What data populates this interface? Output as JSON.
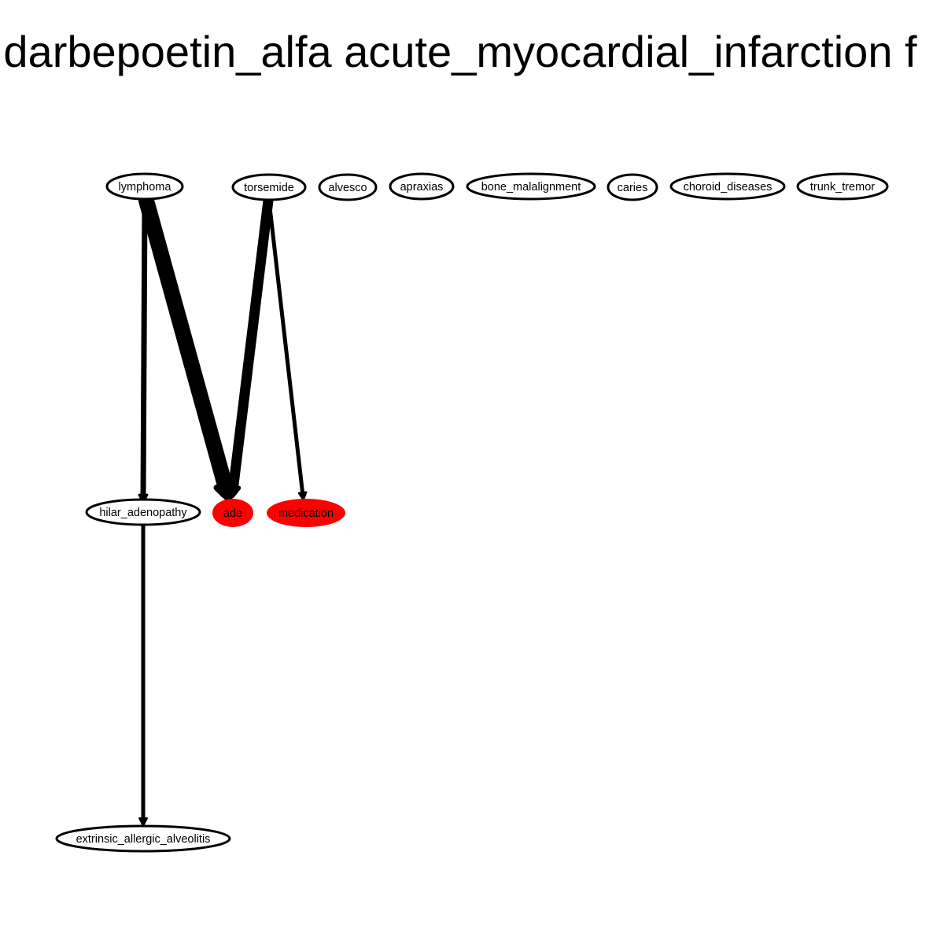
{
  "title": "darbepoetin_alfa acute_myocardial_infarction f",
  "colors": {
    "highlight_fill": "#ff0000",
    "node_fill": "#ffffff",
    "stroke": "#000000"
  },
  "nodes": [
    {
      "id": "lymphoma",
      "label": "lymphoma",
      "highlight": false
    },
    {
      "id": "torsemide",
      "label": "torsemide",
      "highlight": false
    },
    {
      "id": "alvesco",
      "label": "alvesco",
      "highlight": false
    },
    {
      "id": "apraxias",
      "label": "apraxias",
      "highlight": false
    },
    {
      "id": "bone_malalignment",
      "label": "bone_malalignment",
      "highlight": false
    },
    {
      "id": "caries",
      "label": "caries",
      "highlight": false
    },
    {
      "id": "choroid_diseases",
      "label": "choroid_diseases",
      "highlight": false
    },
    {
      "id": "trunk_tremor",
      "label": "trunk_tremor",
      "highlight": false
    },
    {
      "id": "hilar_adenopathy",
      "label": "hilar_adenopathy",
      "highlight": false
    },
    {
      "id": "ade",
      "label": "ade",
      "highlight": true
    },
    {
      "id": "medication",
      "label": "medication",
      "highlight": true
    },
    {
      "id": "extrinsic_allergic_alveolitis",
      "label": "extrinsic_allergic_alveolitis",
      "highlight": false
    }
  ],
  "edges": [
    {
      "from": "lymphoma",
      "to": "hilar_adenopathy",
      "weight": 2
    },
    {
      "from": "lymphoma",
      "to": "ade",
      "weight": 5
    },
    {
      "from": "torsemide",
      "to": "ade",
      "weight": 3
    },
    {
      "from": "torsemide",
      "to": "medication",
      "weight": 1
    },
    {
      "from": "hilar_adenopathy",
      "to": "extrinsic_allergic_alveolitis",
      "weight": 1
    }
  ]
}
